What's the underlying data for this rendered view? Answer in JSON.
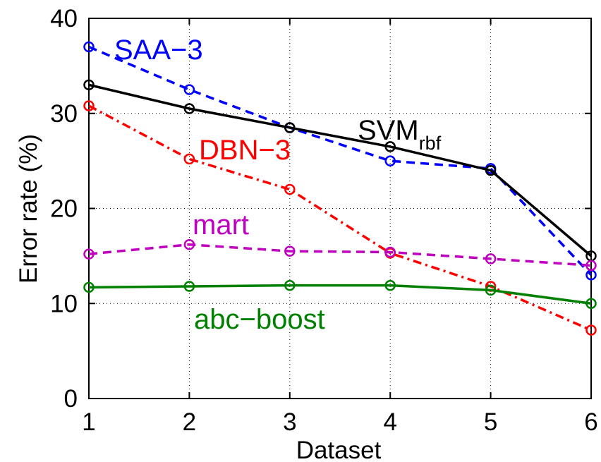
{
  "chart_data": {
    "type": "line",
    "title": "",
    "xlabel": "Dataset",
    "ylabel": "Error rate (%)",
    "xlim": [
      1,
      6
    ],
    "ylim": [
      0,
      40
    ],
    "x": [
      1,
      2,
      3,
      4,
      5,
      6
    ],
    "xticks": [
      "1",
      "2",
      "3",
      "4",
      "5",
      "6"
    ],
    "yticks": [
      "0",
      "10",
      "20",
      "30",
      "40"
    ],
    "grid": true,
    "legend": "none",
    "series": [
      {
        "name": "SAA−3",
        "label_main": "SAA−3",
        "label_sub": "",
        "color": "#0000ff",
        "line_style": "dashed",
        "marker": "circle",
        "values": [
          37.0,
          32.5,
          28.5,
          25.0,
          24.2,
          13.0
        ]
      },
      {
        "name": "SVMrbf",
        "label_main": "SVM",
        "label_sub": "rbf",
        "color": "#000000",
        "line_style": "solid",
        "marker": "circle",
        "values": [
          33.0,
          30.5,
          28.5,
          26.5,
          24.0,
          15.0
        ]
      },
      {
        "name": "DBN−3",
        "label_main": "DBN−3",
        "label_sub": "",
        "color": "#ff0000",
        "line_style": "dashdot",
        "marker": "circle",
        "values": [
          30.8,
          25.2,
          22.0,
          15.3,
          11.8,
          7.2
        ]
      },
      {
        "name": "mart",
        "label_main": "mart",
        "label_sub": "",
        "color": "#bf00bf",
        "line_style": "dashed",
        "marker": "circle",
        "values": [
          15.2,
          16.2,
          15.5,
          15.4,
          14.7,
          14.0
        ]
      },
      {
        "name": "abc−boost",
        "label_main": "abc−boost",
        "label_sub": "",
        "color": "#008000",
        "line_style": "solid",
        "marker": "circle",
        "values": [
          11.7,
          11.8,
          11.9,
          11.9,
          11.4,
          10.0
        ]
      }
    ]
  }
}
